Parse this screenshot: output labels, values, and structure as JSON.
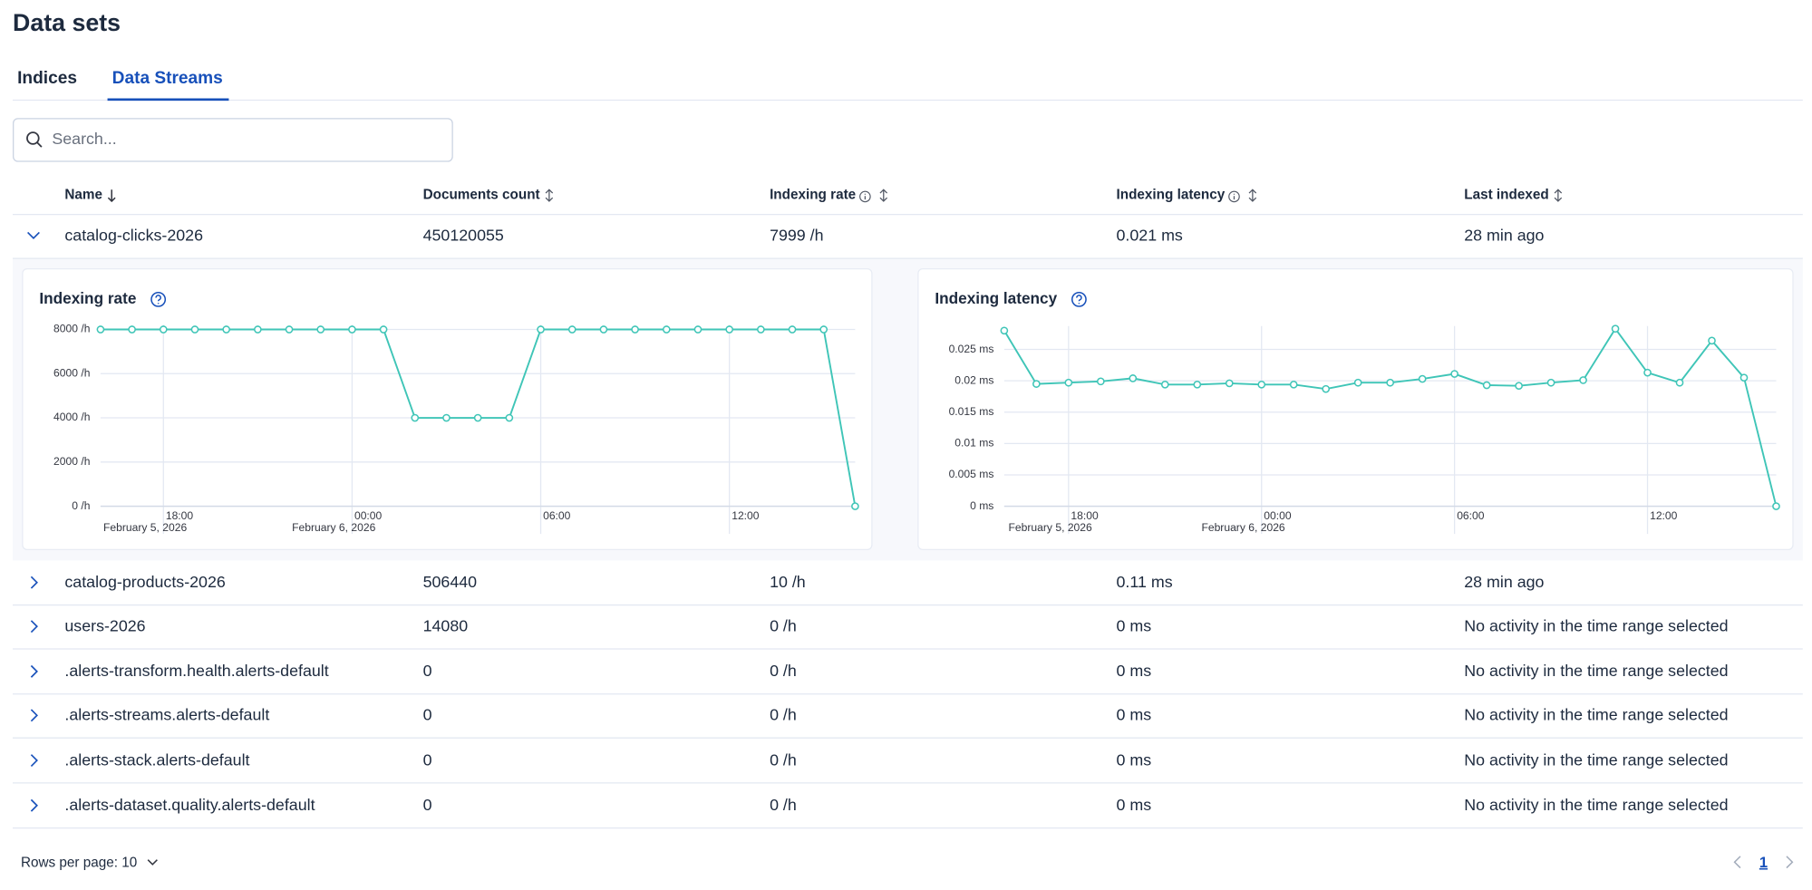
{
  "title": "Data sets",
  "tabs": [
    "Indices",
    "Data Streams"
  ],
  "search_placeholder": "Search...",
  "table": {
    "columns": [
      "Name",
      "Documents count",
      "Indexing rate",
      "Indexing latency",
      "Last indexed"
    ],
    "rows": [
      [
        "catalog-clicks-2026",
        "450120055",
        "7999 /h",
        "0.021 ms",
        "28 min ago"
      ],
      [
        "catalog-products-2026",
        "506440",
        "10 /h",
        "0.11 ms",
        "28 min ago"
      ],
      [
        "users-2026",
        "14080",
        "0 /h",
        "0 ms",
        "No activity in the time range selected"
      ],
      [
        ".alerts-transform.health.alerts-default",
        "0",
        "0 /h",
        "0 ms",
        "No activity in the time range selected"
      ],
      [
        ".alerts-streams.alerts-default",
        "0",
        "0 /h",
        "0 ms",
        "No activity in the time range selected"
      ],
      [
        ".alerts-stack.alerts-default",
        "0",
        "0 /h",
        "0 ms",
        "No activity in the time range selected"
      ],
      [
        ".alerts-dataset.quality.alerts-default",
        "0",
        "0 /h",
        "0 ms",
        "No activity in the time range selected"
      ]
    ]
  },
  "chart_data": [
    {
      "type": "line",
      "title": "Indexing rate",
      "categories": [
        null,
        null,
        "18:00",
        null,
        null,
        null,
        null,
        null,
        "00:00",
        null,
        null,
        null,
        null,
        null,
        "06:00",
        null,
        null,
        null,
        null,
        null,
        "12:00",
        null,
        null,
        null,
        null
      ],
      "category_dates": [
        null,
        null,
        "February 5, 2026",
        null,
        null,
        null,
        null,
        null,
        "February 6, 2026",
        null,
        null,
        null,
        null,
        null,
        null,
        null,
        null,
        null,
        null,
        null,
        null,
        null,
        null,
        null,
        null
      ],
      "series": [
        {
          "color": "#3fc5b7",
          "values": [
            8000,
            8000,
            8000,
            8000,
            8000,
            8000,
            8000,
            8000,
            8000,
            8000,
            4000,
            4000,
            4000,
            4000,
            8000,
            8000,
            8000,
            8000,
            8000,
            8000,
            8000,
            8000,
            8000,
            8000,
            0
          ]
        }
      ],
      "ylim": [
        0,
        8000
      ],
      "yticks": [
        {
          "value": 0,
          "label": "0 /h"
        },
        {
          "value": 2000,
          "label": "2000 /h"
        },
        {
          "value": 4000,
          "label": "4000 /h"
        },
        {
          "value": 6000,
          "label": "6000 /h"
        },
        {
          "value": 8000,
          "label": "8000 /h"
        }
      ],
      "grid": true
    },
    {
      "type": "line",
      "title": "Indexing latency",
      "categories": [
        null,
        null,
        "18:00",
        null,
        null,
        null,
        null,
        null,
        "00:00",
        null,
        null,
        null,
        null,
        null,
        "06:00",
        null,
        null,
        null,
        null,
        null,
        "12:00",
        null,
        null,
        null,
        null
      ],
      "category_dates": [
        null,
        null,
        "February 5, 2026",
        null,
        null,
        null,
        null,
        null,
        "February 6, 2026",
        null,
        null,
        null,
        null,
        null,
        null,
        null,
        null,
        null,
        null,
        null,
        null,
        null,
        null,
        null,
        null
      ],
      "series": [
        {
          "color": "#3fc5b7",
          "values": [
            0.028,
            0.0195,
            0.0197,
            0.0199,
            0.0204,
            0.0194,
            0.0194,
            0.0196,
            0.0194,
            0.0194,
            0.0187,
            0.0197,
            0.0197,
            0.0203,
            0.0211,
            0.0193,
            0.0192,
            0.0197,
            0.0201,
            0.0283,
            0.0213,
            0.0197,
            0.0264,
            0.0205,
            0
          ]
        }
      ],
      "ylim": [
        0,
        0.028
      ],
      "yticks": [
        {
          "value": 0,
          "label": "0 ms"
        },
        {
          "value": 0.005,
          "label": "0.005 ms"
        },
        {
          "value": 0.01,
          "label": "0.01 ms"
        },
        {
          "value": 0.015,
          "label": "0.015 ms"
        },
        {
          "value": 0.02,
          "label": "0.02 ms"
        },
        {
          "value": 0.025,
          "label": "0.025 ms"
        }
      ],
      "grid": true
    }
  ],
  "footer": {
    "rows_per_page": "Rows per page: 10",
    "page": "1"
  }
}
